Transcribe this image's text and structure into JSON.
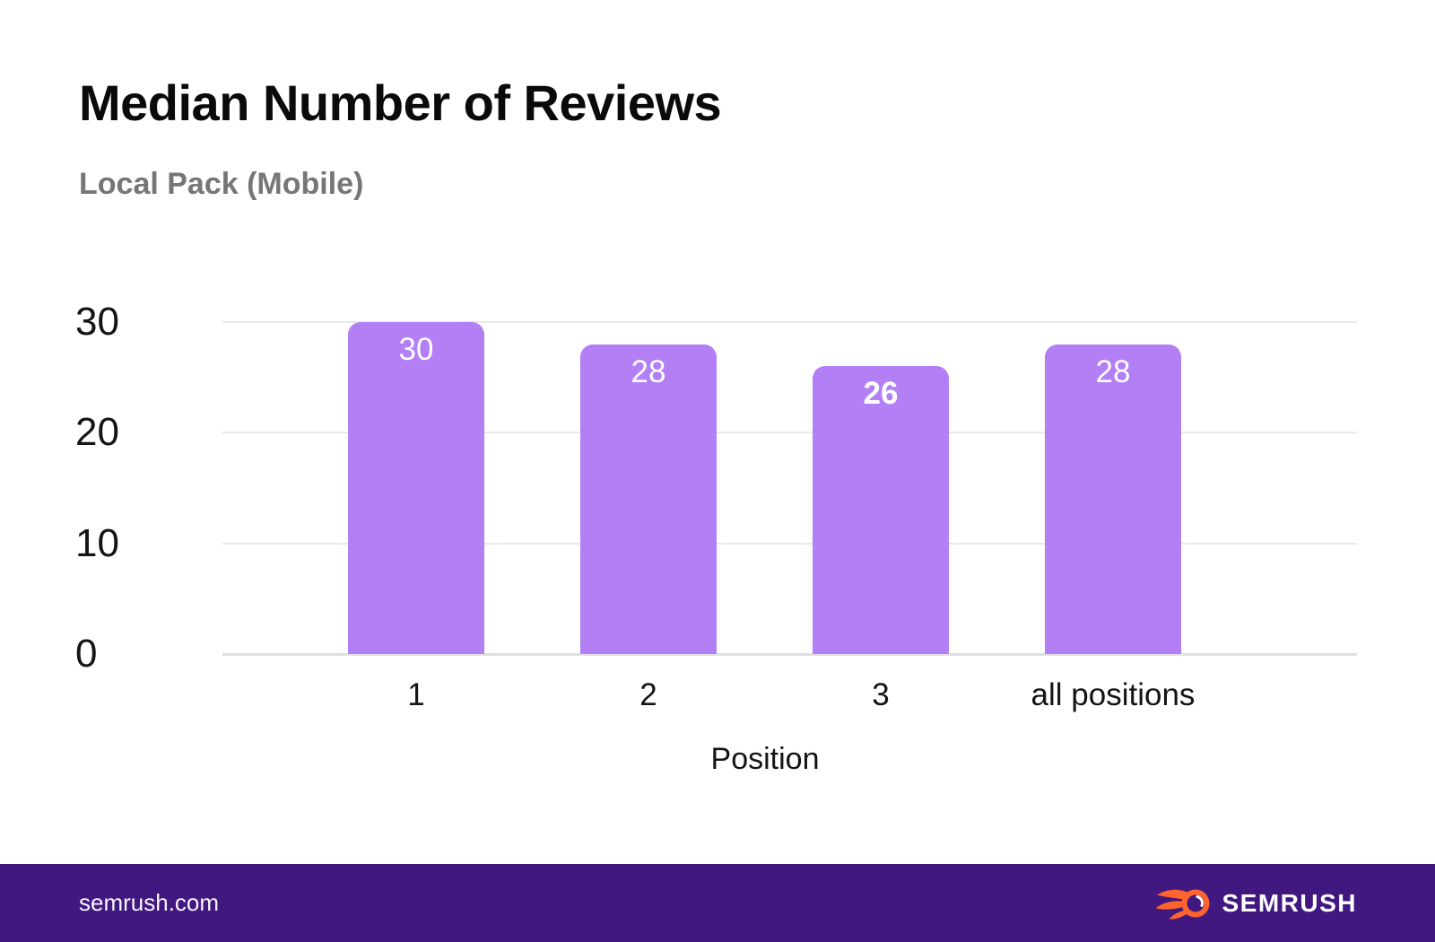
{
  "header": {
    "title": "Median Number of Reviews",
    "subtitle": "Local Pack (Mobile)"
  },
  "chart_data": {
    "type": "bar",
    "title": "Median Number of Reviews",
    "subtitle": "Local Pack (Mobile)",
    "categories": [
      "1",
      "2",
      "3",
      "all positions"
    ],
    "values": [
      30,
      28,
      26,
      28
    ],
    "value_labels": [
      "30",
      "28",
      "26",
      "28"
    ],
    "emphasized_index": 2,
    "xlabel": "Position",
    "ylabel": "",
    "ylim": [
      0,
      30
    ],
    "yticks": [
      0,
      10,
      20,
      30
    ],
    "grid": true,
    "legend": "none",
    "bar_color": "#b27ff5",
    "value_label_color": "#ffffff"
  },
  "footer": {
    "site": "semrush.com",
    "brand": "SEMRUSH",
    "background": "#41187f",
    "logo_flame_color": "#ff642d"
  },
  "colors": {
    "title": "#0a0a0a",
    "subtitle": "#767676",
    "axis_label": "#141414",
    "gridline": "#e9e9e9",
    "bar": "#b27ff5"
  }
}
